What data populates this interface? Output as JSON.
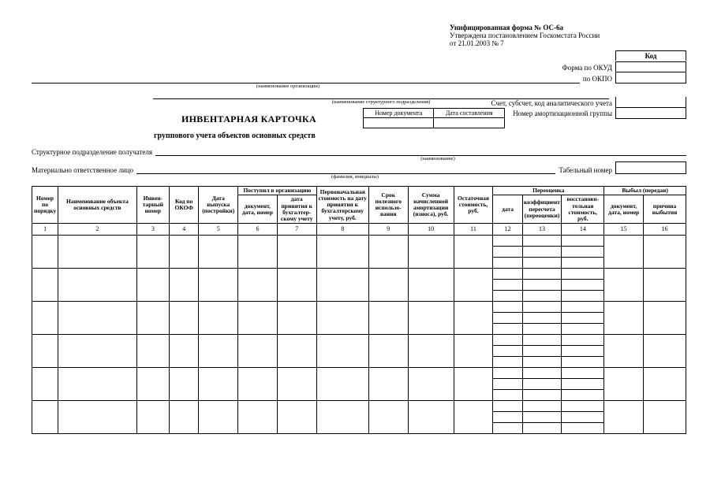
{
  "header": {
    "form_line": "Унифицированная форма № ОС-6а",
    "approval_line1": "Утверждена постановлением Госкомстата России",
    "approval_line2": "от 21.01.2003 № 7"
  },
  "codes": {
    "code_header": "Код",
    "okud_label": "Форма по ОКУД",
    "okpo_label": "по ОКПО",
    "account_label": "Счет, субсчет, код аналитического учета",
    "amort_group_label": "Номер амортизационной группы"
  },
  "captions": {
    "org_caption": "(наименование организации)",
    "subdiv_caption": "(наименование структурного подразделения)",
    "recipient_caption": "(наименование)",
    "person_caption": "(фамилия, инициалы)"
  },
  "title": {
    "main": "ИНВЕНТАРНАЯ КАРТОЧКА",
    "sub": "группового учета объектов основных средств"
  },
  "docnum": {
    "num_header": "Номер документа",
    "date_header": "Дата составления"
  },
  "fields": {
    "recipient_label": "Структурное подразделение получателя",
    "responsible_label": "Материально ответственное лицо",
    "tab_num_label": "Табельный номер"
  },
  "columns": {
    "c1": "Номер по поряд­ку",
    "c2": "Наименование объекта основных средств",
    "c3": "Инвен­тарный номер",
    "c4": "Код по ОКОФ",
    "c5": "Дата выпуска (постройки)",
    "g_postup": "Поступил в организацию",
    "c6": "документ, дата, номер",
    "c7": "дата принятия к бухгалтер­скому учету",
    "c8": "Первоначальная стоимость на дату принятия к бухгалтерскому учету, руб.",
    "c9": "Срок полезного использо­вания",
    "c10": "Сумма начисленной амортизации (износа), руб.",
    "c11": "Остаточная стоимость, руб.",
    "g_pereoc": "Переоценка",
    "c12": "дата",
    "c13": "коэффици­ент пере­счета (пере­оценки)",
    "c14": "восстанови­тельная стоимость, руб.",
    "g_vybyl": "Выбыл (передан)",
    "c15": "документ, дата, номер",
    "c16": "причина выбытия"
  },
  "nums": {
    "n1": "1",
    "n2": "2",
    "n3": "3",
    "n4": "4",
    "n5": "5",
    "n6": "6",
    "n7": "7",
    "n8": "8",
    "n9": "9",
    "n10": "10",
    "n11": "11",
    "n12": "12",
    "n13": "13",
    "n14": "14",
    "n15": "15",
    "n16": "16"
  },
  "style": {
    "background_color": "#ffffff",
    "text_color": "#000000",
    "border_color": "#000000",
    "body_font_size_pt": 9,
    "caption_font_size_pt": 6.5,
    "table_font_size_pt": 7.5,
    "col_widths_pct": [
      4,
      12,
      5,
      4.5,
      6,
      6,
      6,
      8,
      6,
      7,
      6,
      4.5,
      6,
      6.5,
      6,
      6.5
    ],
    "body_rows": 6,
    "sub_rows_per_cell": 3
  }
}
